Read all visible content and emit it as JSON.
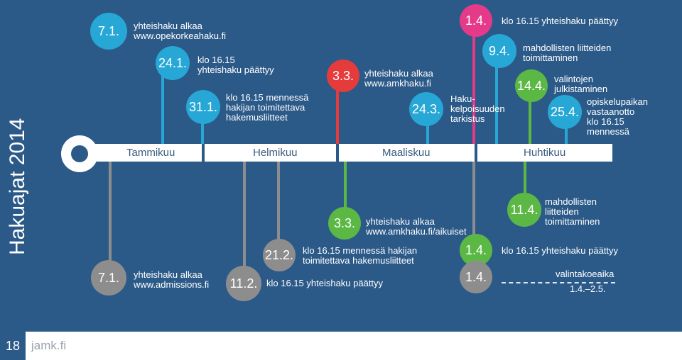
{
  "side_title": "Hakuajat 2014",
  "months": [
    "Tammikuu",
    "Helmikuu",
    "Maaliskuu",
    "Huhtikuu"
  ],
  "upper": [
    {
      "date": "7.1.",
      "text": [
        "yhteishaku alkaa",
        "www.opekorkeahaku.fi"
      ]
    },
    {
      "date": "24.1.",
      "text": [
        "klo 16.15",
        "yhteishaku päättyy"
      ]
    },
    {
      "date": "31.1.",
      "text": [
        "klo 16.15 mennessä",
        "hakijan toimitettava",
        "hakemusliitteet"
      ]
    },
    {
      "date": "3.3.",
      "text": [
        "yhteishaku alkaa",
        "www.amkhaku.fi"
      ]
    },
    {
      "date": "24.3.",
      "text": [
        "Haku-",
        "kelpoisuuden",
        "tarkistus"
      ]
    },
    {
      "date": "1.4.",
      "text": [
        "klo 16.15 yhteishaku päättyy"
      ]
    },
    {
      "date": "9.4.",
      "text": [
        "mahdollisten liitteiden",
        "toimittaminen"
      ]
    },
    {
      "date": "14.4.",
      "text": [
        "valintojen",
        "julkistaminen"
      ]
    },
    {
      "date": "25.4.",
      "text": [
        "opiskelupaikan",
        "vastaanotto",
        "klo 16.15",
        "mennessä"
      ]
    }
  ],
  "lower": [
    {
      "date": "3.3.",
      "text": [
        "yhteishaku alkaa",
        "www.amkhaku.fi/aikuiset"
      ]
    },
    {
      "date": "11.4.",
      "text": [
        "mahdollisten",
        "liitteiden",
        "toimittaminen"
      ]
    },
    {
      "date": "21.2.",
      "text": [
        "klo 16.15 mennessä hakijan",
        "toimitettava hakemusliitteet"
      ]
    },
    {
      "date": "1.4.",
      "text": [
        "klo 16.15 yhteishaku päättyy"
      ]
    },
    {
      "date": "7.1.",
      "text": [
        "yhteishaku alkaa",
        "www.admissions.fi"
      ]
    },
    {
      "date": "11.2.",
      "text": [
        "klo 16.15 yhteishaku päättyy"
      ]
    },
    {
      "date": "1.4.",
      "text": [
        "valintakoeaika",
        "1.4.–2.5."
      ]
    }
  ],
  "footer": {
    "page": "18",
    "logo": "jamk.fi"
  },
  "colors": {
    "background": "#2c5a88",
    "blue": "#27a7d6",
    "green": "#5cb845",
    "grey": "#8d8d8e"
  }
}
